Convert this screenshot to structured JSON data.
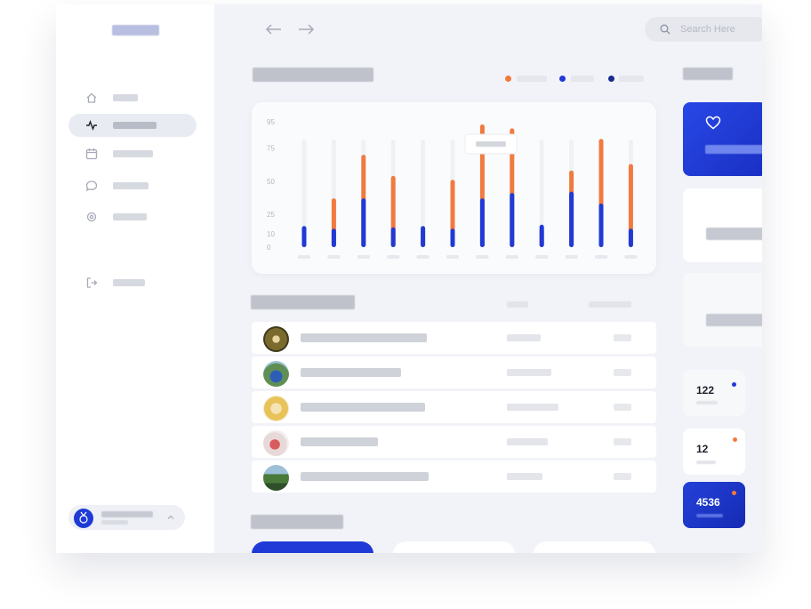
{
  "search": {
    "placeholder": "Search Here"
  },
  "colors": {
    "accent": "#1f3ad6",
    "orange": "#f07a3f",
    "navy": "#1b2a8f"
  },
  "chart_data": {
    "type": "bar",
    "y_ticks": [
      "0",
      "10",
      "25",
      "50",
      "75",
      "95"
    ],
    "series": [
      {
        "values": [
          16,
          14,
          37,
          15,
          16,
          14,
          37,
          41,
          17,
          42,
          33,
          14
        ]
      },
      {
        "values": [
          14,
          37,
          70,
          54,
          14,
          51,
          93,
          90,
          14,
          58,
          82,
          63
        ]
      }
    ]
  },
  "stats": [
    {
      "value": "122"
    },
    {
      "value": "12"
    },
    {
      "value": "4536"
    }
  ],
  "icons": [
    "home-icon",
    "activity-icon",
    "calendar-icon",
    "chat-icon",
    "settings-icon",
    "logout-icon",
    "heart-icon",
    "search-icon",
    "chevron-up-icon"
  ]
}
